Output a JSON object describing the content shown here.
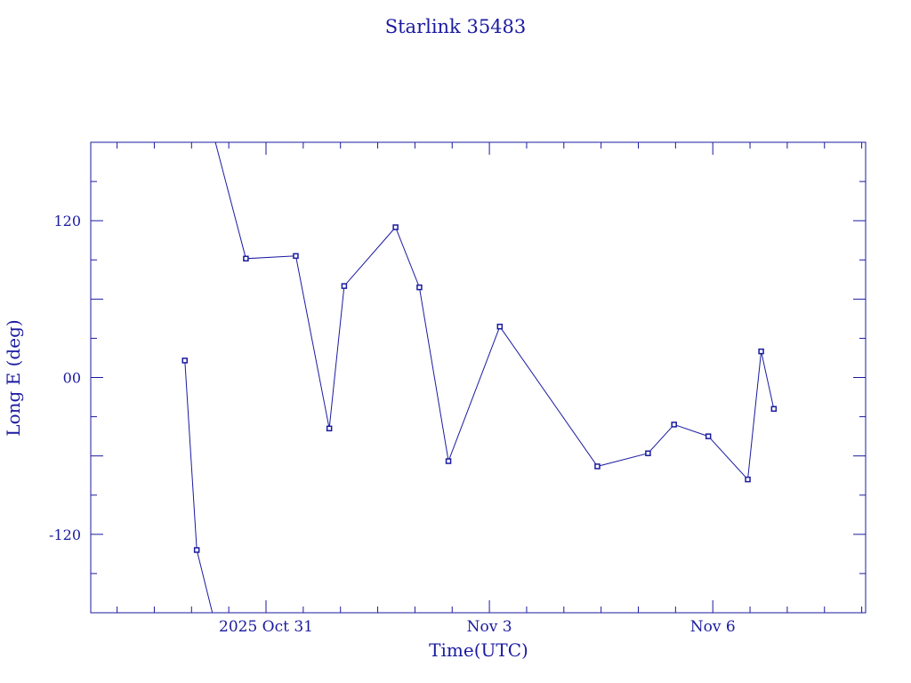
{
  "chart_data": {
    "type": "line",
    "title": "Starlink 35483",
    "xlabel": "Time(UTC)",
    "ylabel": "Long E (deg)",
    "x_tick_labels": [
      "2025 Oct 31",
      "Nov  3",
      "Nov  6"
    ],
    "y_tick_labels": [
      "120",
      "00",
      "-120"
    ],
    "y_ticks": [
      120,
      0,
      -120
    ],
    "ylim": [
      -180,
      180
    ],
    "x_range_days": [
      -2.36,
      8.05
    ],
    "grid": false,
    "marker": "small-square",
    "colors": {
      "axes": "#1a1aa0",
      "line": "#1a1aa0",
      "text": "#1a1aa0"
    },
    "series": [
      {
        "segments": [
          [
            {
              "x": -1.09,
              "y": 13
            },
            {
              "x": -0.93,
              "y": -132
            },
            {
              "x": -0.72,
              "y": -180
            }
          ],
          [
            {
              "x": -0.68,
              "y": 180
            },
            {
              "x": -0.27,
              "y": 91
            },
            {
              "x": 0.4,
              "y": 93
            },
            {
              "x": 0.85,
              "y": -39
            },
            {
              "x": 1.05,
              "y": 70
            },
            {
              "x": 1.74,
              "y": 115
            },
            {
              "x": 2.06,
              "y": 69
            },
            {
              "x": 2.45,
              "y": -64
            },
            {
              "x": 3.14,
              "y": 39
            },
            {
              "x": 4.45,
              "y": -68
            },
            {
              "x": 5.13,
              "y": -58
            },
            {
              "x": 5.48,
              "y": -36
            },
            {
              "x": 5.94,
              "y": -45
            },
            {
              "x": 6.47,
              "y": -78
            },
            {
              "x": 6.65,
              "y": 20
            },
            {
              "x": 6.82,
              "y": -24
            }
          ]
        ]
      }
    ]
  }
}
